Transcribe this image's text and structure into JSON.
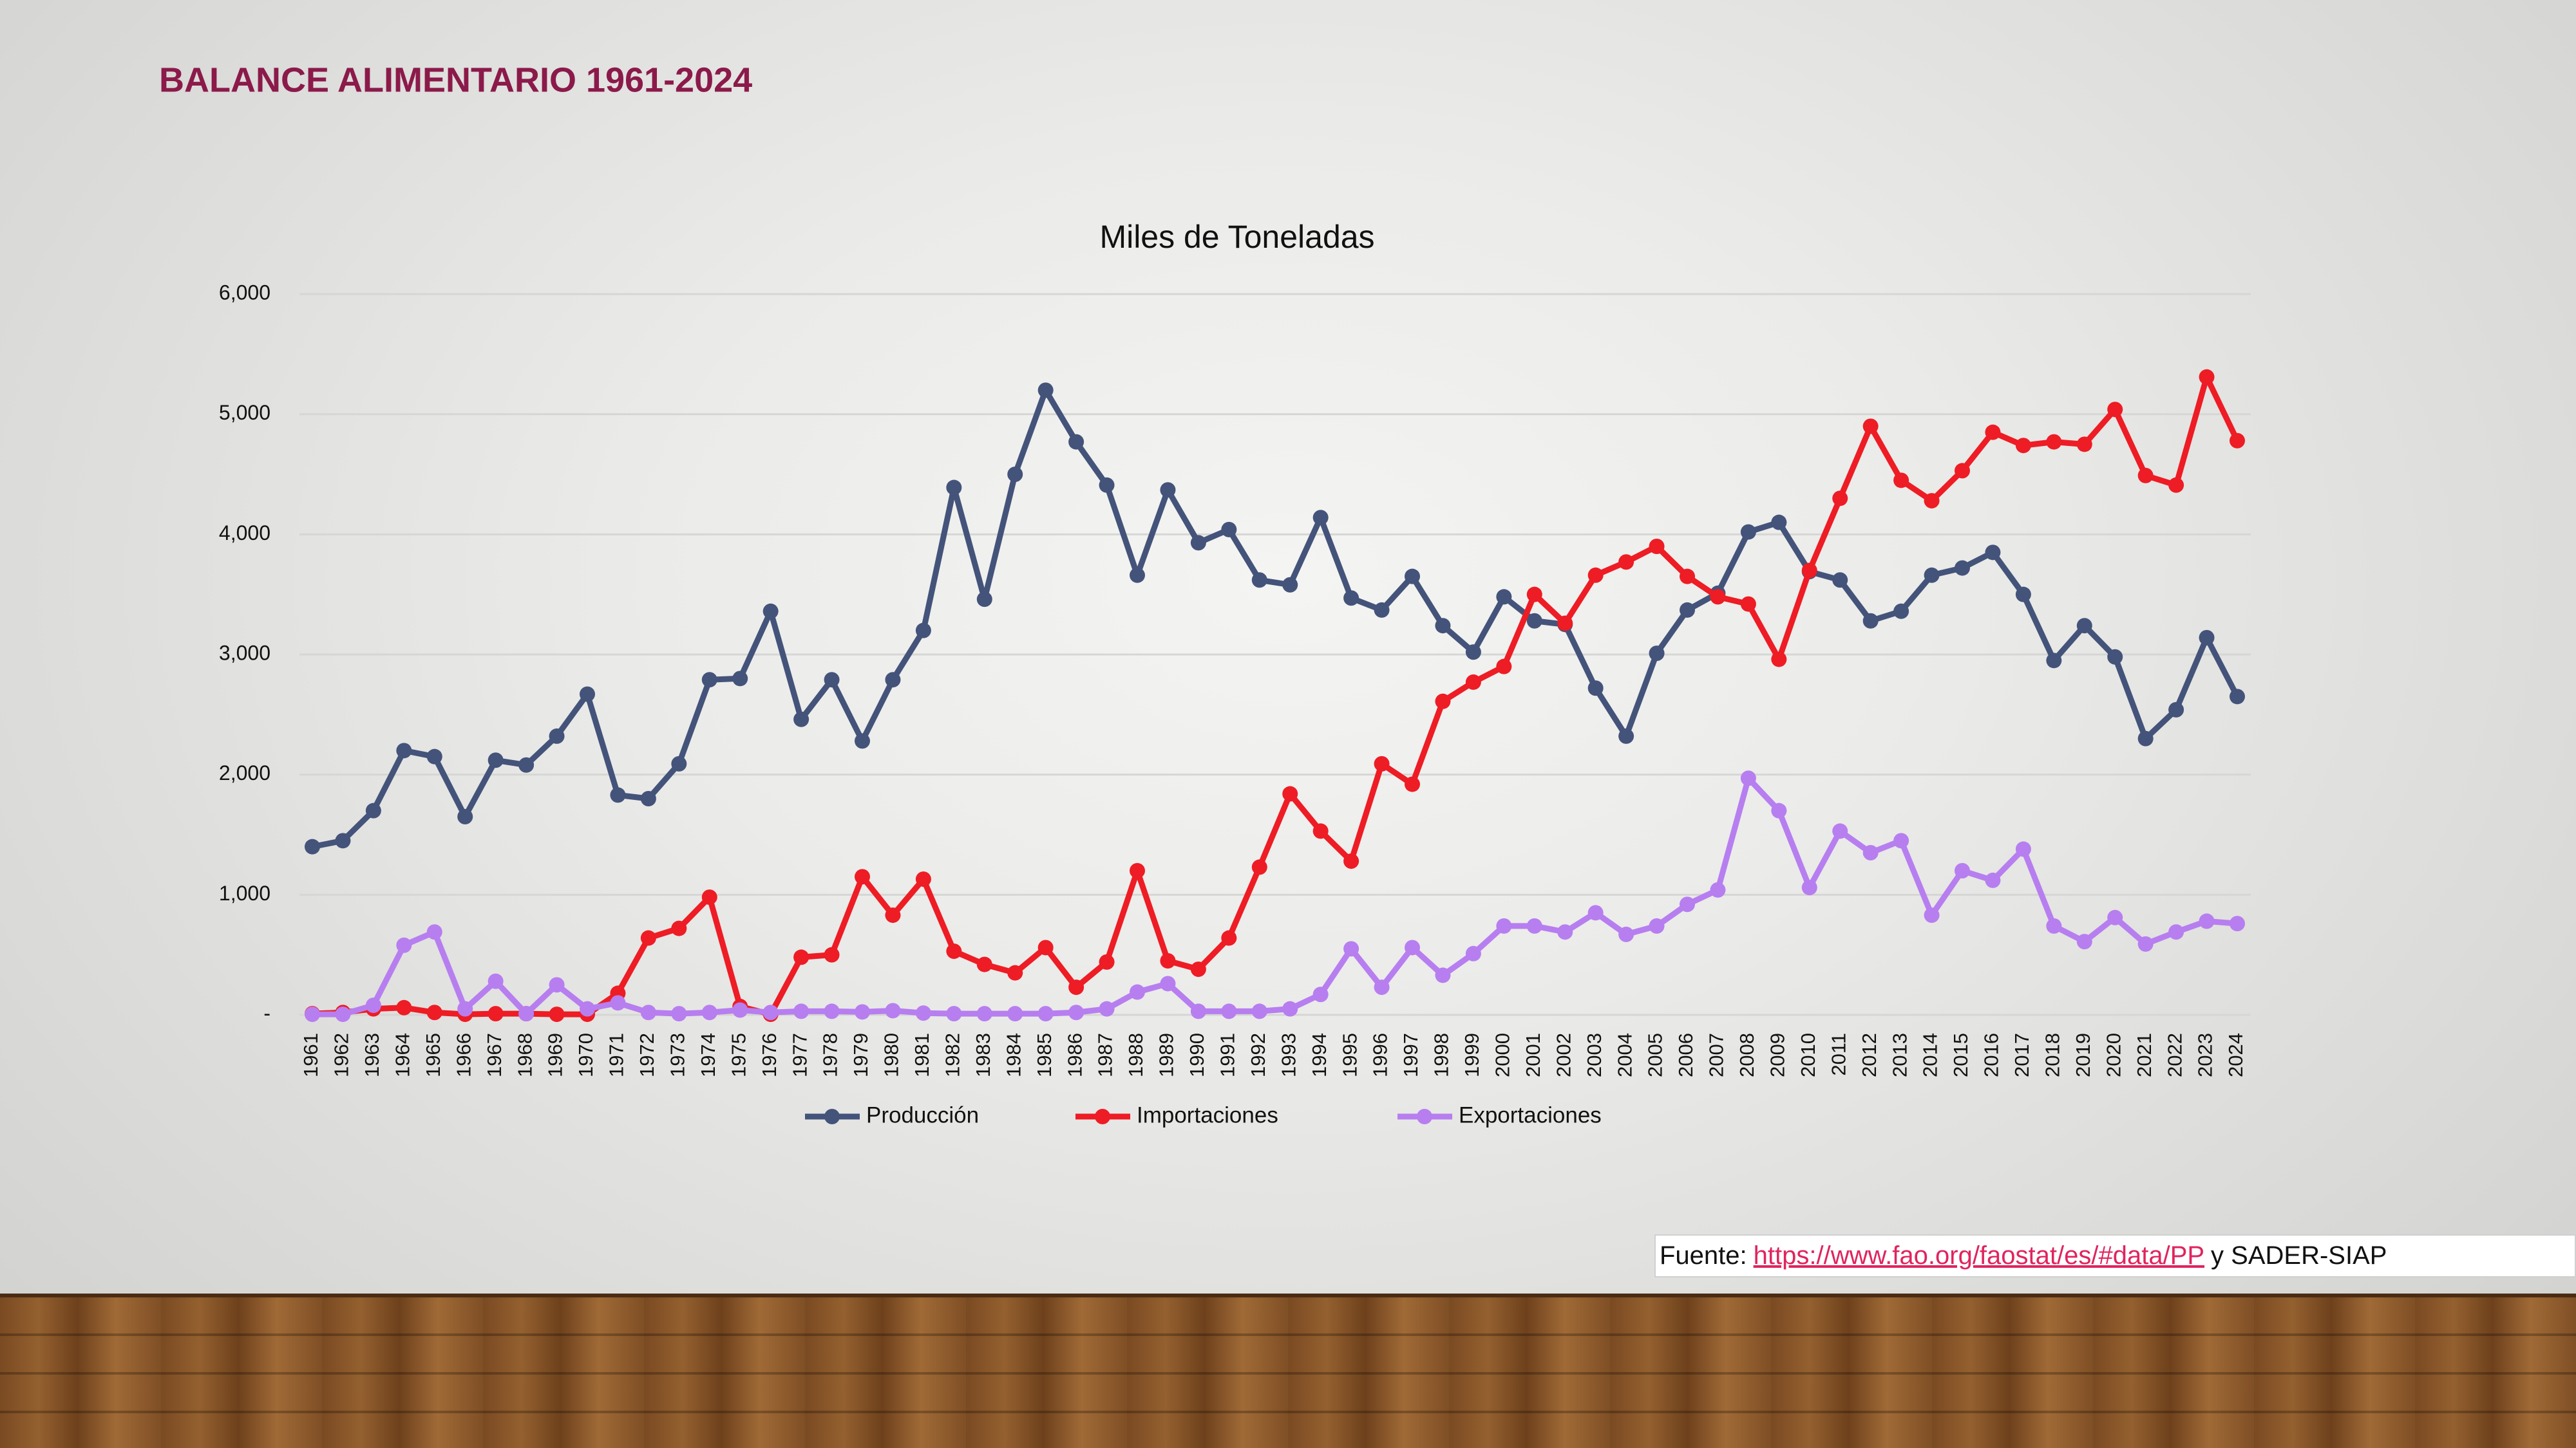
{
  "chart_data": {
    "type": "line",
    "heading": "BALANCE ALIMENTARIO 1961-2024",
    "title": "Miles de Toneladas",
    "categories": [
      "1961",
      "1962",
      "1963",
      "1964",
      "1965",
      "1966",
      "1967",
      "1968",
      "1969",
      "1970",
      "1971",
      "1972",
      "1973",
      "1974",
      "1975",
      "1976",
      "1977",
      "1978",
      "1979",
      "1980",
      "1981",
      "1982",
      "1983",
      "1984",
      "1985",
      "1986",
      "1987",
      "1988",
      "1989",
      "1990",
      "1991",
      "1992",
      "1993",
      "1994",
      "1995",
      "1996",
      "1997",
      "1998",
      "1999",
      "2000",
      "2001",
      "2002",
      "2003",
      "2004",
      "2005",
      "2006",
      "2007",
      "2008",
      "2009",
      "2010",
      "2011",
      "2012",
      "2013",
      "2014",
      "2015",
      "2016",
      "2017",
      "2018",
      "2019",
      "2020",
      "2021",
      "2022",
      "2023",
      "2024"
    ],
    "series": [
      {
        "name": "Producción",
        "color": "#44537a",
        "values": [
          1400,
          1450,
          1700,
          2200,
          2150,
          1650,
          2120,
          2080,
          2320,
          2670,
          1830,
          1800,
          2090,
          2790,
          2800,
          3360,
          2460,
          2790,
          2280,
          2790,
          3200,
          4390,
          3460,
          4500,
          5200,
          4770,
          4410,
          3660,
          4370,
          3930,
          4040,
          3620,
          3580,
          4140,
          3470,
          3370,
          3650,
          3240,
          3020,
          3480,
          3280,
          3250,
          2720,
          2320,
          3010,
          3370,
          3510,
          4020,
          4100,
          3690,
          3620,
          3280,
          3360,
          3660,
          3720,
          3850,
          3500,
          2950,
          3240,
          2980,
          2300,
          2540,
          3140,
          2650
        ]
      },
      {
        "name": "Importaciones",
        "color": "#ee1c24",
        "values": [
          10,
          20,
          50,
          60,
          20,
          5,
          10,
          10,
          5,
          5,
          180,
          640,
          720,
          980,
          70,
          5,
          480,
          500,
          1150,
          830,
          1130,
          530,
          420,
          350,
          560,
          230,
          440,
          1200,
          450,
          380,
          640,
          1230,
          1840,
          1530,
          1280,
          2090,
          1920,
          2610,
          2770,
          2900,
          3500,
          3260,
          3660,
          3770,
          3900,
          3650,
          3480,
          3420,
          2960,
          3700,
          4300,
          4900,
          4450,
          4280,
          4530,
          4850,
          4740,
          4770,
          4750,
          5040,
          4490,
          4410,
          5310,
          4780
        ]
      },
      {
        "name": "Exportaciones",
        "color": "#b77ef0",
        "values": [
          5,
          5,
          80,
          580,
          690,
          50,
          280,
          10,
          250,
          50,
          100,
          20,
          10,
          20,
          40,
          20,
          30,
          30,
          25,
          35,
          15,
          10,
          10,
          10,
          10,
          20,
          50,
          190,
          260,
          30,
          30,
          30,
          50,
          170,
          550,
          230,
          560,
          330,
          510,
          740,
          740,
          690,
          850,
          670,
          740,
          920,
          1040,
          1970,
          1700,
          1060,
          1530,
          1350,
          1450,
          830,
          1200,
          1120,
          1380,
          740,
          610,
          810,
          590,
          690,
          780,
          760
        ]
      }
    ],
    "ylim": [
      0,
      6000
    ],
    "yticks": [
      {
        "value": 0,
        "label": "-"
      },
      {
        "value": 1000,
        "label": "1,000"
      },
      {
        "value": 2000,
        "label": "2,000"
      },
      {
        "value": 3000,
        "label": "3,000"
      },
      {
        "value": 4000,
        "label": "4,000"
      },
      {
        "value": 5000,
        "label": "5,000"
      },
      {
        "value": 6000,
        "label": "6,000"
      }
    ],
    "grid": true,
    "legend": "bottom"
  },
  "footnote": {
    "prefix": "Fuente:",
    "link": "https://www.fao.org/faostat/es/#data/PP",
    "suffix": "y SADER-SIAP"
  }
}
